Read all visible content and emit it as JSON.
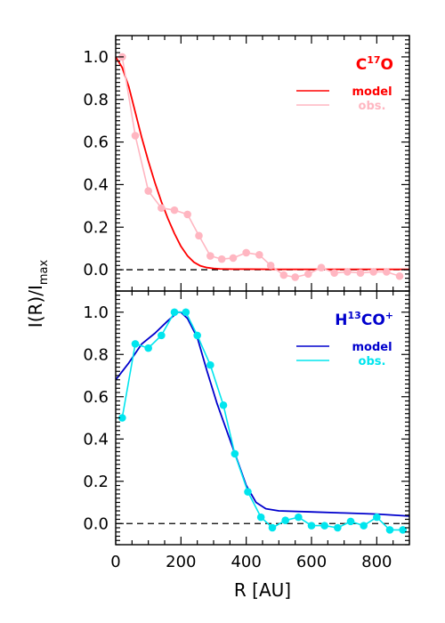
{
  "chart_data": [
    {
      "type": "line",
      "panel": "top",
      "label_main": "C",
      "label_sup": "17",
      "label_tail": "O",
      "label_color": "#ff0000",
      "xlim": [
        0,
        900
      ],
      "ylim": [
        -0.1,
        1.1
      ],
      "x_ticks": [
        0,
        200,
        400,
        600,
        800
      ],
      "y_ticks": [
        0.0,
        0.2,
        0.4,
        0.6,
        0.8,
        1.0
      ],
      "y_tick_labels": [
        "0.0",
        "0.2",
        "0.4",
        "0.6",
        "0.8",
        "1.0"
      ],
      "zero_line": true,
      "legend_position": "top-right",
      "series": [
        {
          "name": "model",
          "color": "#ff0000",
          "markers": false,
          "x": [
            0,
            20,
            40,
            60,
            80,
            100,
            120,
            140,
            160,
            180,
            200,
            220,
            240,
            260,
            280,
            300,
            320,
            360,
            400,
            500,
            600,
            700,
            800,
            900
          ],
          "y": [
            1.0,
            0.95,
            0.86,
            0.74,
            0.62,
            0.51,
            0.41,
            0.32,
            0.24,
            0.17,
            0.11,
            0.065,
            0.035,
            0.018,
            0.01,
            0.006,
            0.004,
            0.003,
            0.003,
            0.002,
            0.002,
            0.002,
            0.002,
            0.002
          ]
        },
        {
          "name": "obs.",
          "color": "#ffb6c1",
          "markers": true,
          "x": [
            20,
            60,
            100,
            140,
            180,
            220,
            255,
            290,
            325,
            360,
            400,
            440,
            475,
            515,
            550,
            590,
            630,
            670,
            710,
            750,
            790,
            830,
            870
          ],
          "y": [
            1.0,
            0.63,
            0.37,
            0.29,
            0.28,
            0.26,
            0.16,
            0.065,
            0.05,
            0.055,
            0.08,
            0.07,
            0.02,
            -0.025,
            -0.035,
            -0.02,
            0.01,
            -0.015,
            -0.01,
            -0.015,
            -0.01,
            -0.01,
            -0.03
          ]
        }
      ]
    },
    {
      "type": "line",
      "panel": "bottom",
      "label_main": "H",
      "label_sup": "13",
      "label_tail": "CO",
      "label_sup2": "+",
      "label_color": "#0000cd",
      "xlim": [
        0,
        900
      ],
      "ylim": [
        -0.1,
        1.1
      ],
      "x_ticks": [
        0,
        200,
        400,
        600,
        800
      ],
      "x_tick_labels": [
        "0",
        "200",
        "400",
        "600",
        "800"
      ],
      "y_ticks": [
        0.0,
        0.2,
        0.4,
        0.6,
        0.8,
        1.0
      ],
      "y_tick_labels": [
        "0.0",
        "0.2",
        "0.4",
        "0.6",
        "0.8",
        "1.0"
      ],
      "zero_line": true,
      "legend_position": "top-right",
      "series": [
        {
          "name": "model",
          "color": "#0000cd",
          "markers": false,
          "x": [
            0,
            40,
            80,
            120,
            160,
            190,
            200,
            220,
            250,
            280,
            310,
            340,
            370,
            400,
            430,
            460,
            500,
            600,
            700,
            800,
            900
          ],
          "y": [
            0.68,
            0.76,
            0.85,
            0.9,
            0.96,
            1.0,
            1.0,
            0.97,
            0.88,
            0.72,
            0.57,
            0.44,
            0.31,
            0.18,
            0.1,
            0.07,
            0.06,
            0.055,
            0.05,
            0.045,
            0.035
          ]
        },
        {
          "name": "obs.",
          "color": "#00e5ee",
          "markers": true,
          "x": [
            20,
            60,
            100,
            140,
            180,
            215,
            250,
            290,
            330,
            365,
            405,
            445,
            480,
            520,
            560,
            600,
            640,
            680,
            720,
            760,
            800,
            840,
            880
          ],
          "y": [
            0.5,
            0.85,
            0.83,
            0.89,
            1.0,
            1.0,
            0.89,
            0.75,
            0.56,
            0.33,
            0.15,
            0.03,
            -0.02,
            0.015,
            0.03,
            -0.01,
            -0.01,
            -0.02,
            0.01,
            -0.01,
            0.03,
            -0.03,
            -0.03
          ]
        }
      ]
    }
  ],
  "y_axis_label_main": "I(R)/I",
  "y_axis_label_sub": "max",
  "x_axis_label": "R [AU]",
  "colors": {
    "axis": "#000000",
    "zero_line": "#000000"
  }
}
